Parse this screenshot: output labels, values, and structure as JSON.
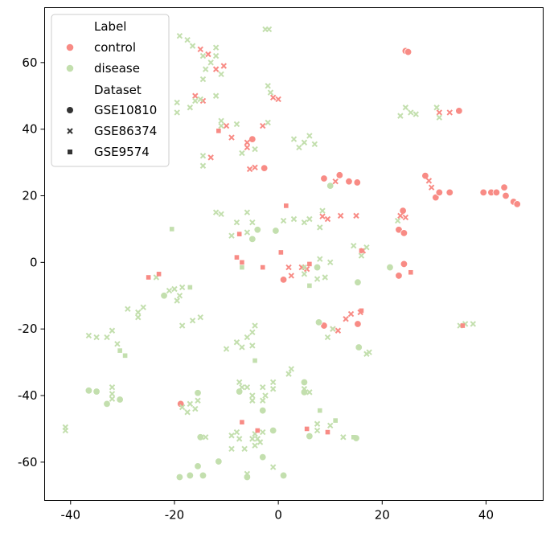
{
  "chart_data": {
    "type": "scatter",
    "title": "",
    "xlabel": "",
    "ylabel": "",
    "xlim": [
      -45,
      51
    ],
    "ylim": [
      -71.5,
      76.5
    ],
    "xticks": [
      -40,
      -20,
      0,
      20,
      40
    ],
    "yticks": [
      -60,
      -40,
      -20,
      0,
      20,
      40,
      60
    ],
    "grid": false,
    "legend_placement": "top-left",
    "legend": {
      "hue_title": "Label",
      "hue_entries": [
        {
          "name": "control",
          "color": "#f88b85"
        },
        {
          "name": "disease",
          "color": "#c3dfae"
        }
      ],
      "style_title": "Dataset",
      "style_entries": [
        {
          "name": "GSE10810",
          "marker": "circle"
        },
        {
          "name": "GSE86374",
          "marker": "x"
        },
        {
          "name": "GSE9574",
          "marker": "square"
        }
      ]
    },
    "series": [
      {
        "name": "control",
        "marker": "circle",
        "color": "#f88b85",
        "points": [
          [
            24.5,
            63.5
          ],
          [
            25,
            63.2
          ],
          [
            34.8,
            45.5
          ],
          [
            33,
            21
          ],
          [
            -5,
            37
          ],
          [
            -2.7,
            28.3
          ],
          [
            8.8,
            25.2
          ],
          [
            11.8,
            26.2
          ],
          [
            13.6,
            24.3
          ],
          [
            15.2,
            24
          ],
          [
            28.3,
            26
          ],
          [
            30.3,
            19.5
          ],
          [
            31,
            21
          ],
          [
            39.5,
            21
          ],
          [
            41,
            21
          ],
          [
            42,
            21
          ],
          [
            43.5,
            22.5
          ],
          [
            43.8,
            20
          ],
          [
            45.3,
            18.2
          ],
          [
            46,
            17.5
          ],
          [
            24,
            15.5
          ],
          [
            23.2,
            9.8
          ],
          [
            24.2,
            8.8
          ],
          [
            23.2,
            -4
          ],
          [
            24.2,
            -0.5
          ],
          [
            1,
            -5.2
          ],
          [
            8.8,
            -19
          ],
          [
            15.3,
            -18.5
          ],
          [
            -18.8,
            -42.5
          ]
        ]
      },
      {
        "name": "disease",
        "marker": "circle",
        "color": "#c3dfae",
        "points": [
          [
            -4,
            9.8
          ],
          [
            -5,
            7
          ],
          [
            -0.5,
            9.5
          ],
          [
            10,
            23
          ],
          [
            7.5,
            -1.5
          ],
          [
            21.5,
            -1.5
          ],
          [
            15.3,
            -6
          ],
          [
            -22,
            -10
          ],
          [
            7.8,
            -18
          ],
          [
            15.5,
            -25.5
          ],
          [
            -36.5,
            -38.5
          ],
          [
            -35,
            -38.8
          ],
          [
            -33,
            -42.5
          ],
          [
            -30.5,
            -41.2
          ],
          [
            -15.5,
            -39.2
          ],
          [
            -3,
            -44.5
          ],
          [
            5,
            -36
          ],
          [
            5,
            -39
          ],
          [
            -7.5,
            -38.8
          ],
          [
            -15,
            -52.5
          ],
          [
            -1,
            -50.5
          ],
          [
            6,
            -52.2
          ],
          [
            15,
            -52.8
          ],
          [
            -11.5,
            -59.8
          ],
          [
            -15.5,
            -61.2
          ],
          [
            -14.5,
            -64
          ],
          [
            -17,
            -64
          ],
          [
            -19,
            -64.5
          ],
          [
            -6,
            -64.5
          ],
          [
            -3,
            -58.5
          ],
          [
            1,
            -64
          ]
        ]
      },
      {
        "name": "control",
        "marker": "x",
        "color": "#f88b85",
        "points": [
          [
            -15,
            64
          ],
          [
            -13.5,
            62.5
          ],
          [
            -12,
            58
          ],
          [
            -10.5,
            59
          ],
          [
            -16,
            50
          ],
          [
            -14.5,
            48.5
          ],
          [
            -1,
            49.5
          ],
          [
            0,
            49
          ],
          [
            -3,
            41
          ],
          [
            -10,
            41
          ],
          [
            -9,
            37.5
          ],
          [
            -6,
            36
          ],
          [
            -6,
            34.5
          ],
          [
            -13,
            31.5
          ],
          [
            -5.5,
            28
          ],
          [
            -4.5,
            28.5
          ],
          [
            31,
            45
          ],
          [
            33,
            45
          ],
          [
            29,
            24.5
          ],
          [
            29.5,
            22.5
          ],
          [
            23.5,
            14
          ],
          [
            24.5,
            13.5
          ],
          [
            11,
            24.3
          ],
          [
            8.5,
            13.8
          ],
          [
            9.5,
            13
          ],
          [
            12,
            14
          ],
          [
            15,
            14
          ],
          [
            16.3,
            3.5
          ],
          [
            2,
            -1.5
          ],
          [
            5.5,
            -2
          ],
          [
            4.5,
            -1.5
          ],
          [
            2.5,
            -4
          ],
          [
            15.8,
            -15
          ],
          [
            14,
            -15.5
          ],
          [
            13,
            -17
          ],
          [
            11.5,
            -20.5
          ],
          [
            10.5,
            -20
          ]
        ]
      },
      {
        "name": "disease",
        "marker": "x",
        "color": "#c3dfae",
        "points": [
          [
            -19,
            68
          ],
          [
            -17.5,
            66.8
          ],
          [
            -16.5,
            65
          ],
          [
            -12,
            64.5
          ],
          [
            -12,
            62
          ],
          [
            -14.5,
            62
          ],
          [
            -13,
            60
          ],
          [
            -14,
            58
          ],
          [
            -14.5,
            55
          ],
          [
            -11,
            56.5
          ],
          [
            -12,
            50
          ],
          [
            -15,
            49
          ],
          [
            -16,
            48.5
          ],
          [
            -19.5,
            48
          ],
          [
            -19.5,
            45
          ],
          [
            -17,
            46.5
          ],
          [
            -2,
            53
          ],
          [
            -1.5,
            51
          ],
          [
            -2.5,
            70
          ],
          [
            -1.8,
            70
          ],
          [
            -11,
            42.5
          ],
          [
            -11,
            41
          ],
          [
            -8,
            41.5
          ],
          [
            -2,
            42
          ],
          [
            -7,
            32.8
          ],
          [
            -4.5,
            34
          ],
          [
            -14.5,
            32
          ],
          [
            -14.5,
            29
          ],
          [
            3,
            37
          ],
          [
            5,
            36
          ],
          [
            6,
            38
          ],
          [
            4,
            34.5
          ],
          [
            7,
            35.5
          ],
          [
            23.5,
            44
          ],
          [
            24.5,
            46.5
          ],
          [
            25.5,
            45
          ],
          [
            26.5,
            44.5
          ],
          [
            30.5,
            46.5
          ],
          [
            31,
            43.5
          ],
          [
            23,
            12.5
          ],
          [
            -12,
            15
          ],
          [
            -11,
            14.5
          ],
          [
            -6,
            15
          ],
          [
            -6,
            9
          ],
          [
            -5,
            12
          ],
          [
            -8,
            12
          ],
          [
            -9,
            8
          ],
          [
            1,
            12.5
          ],
          [
            3,
            13
          ],
          [
            5,
            12
          ],
          [
            6,
            13
          ],
          [
            8.5,
            15.5
          ],
          [
            8,
            10.5
          ],
          [
            14.5,
            5
          ],
          [
            17,
            4.5
          ],
          [
            16,
            2
          ],
          [
            10,
            0
          ],
          [
            9,
            -4.5
          ],
          [
            5,
            -1.5
          ],
          [
            5,
            -3.5
          ],
          [
            7.5,
            -5
          ],
          [
            8,
            1
          ],
          [
            -23.5,
            -4.5
          ],
          [
            -21,
            -8.5
          ],
          [
            -19,
            -10
          ],
          [
            -18.5,
            -7.5
          ],
          [
            -19.5,
            -11.5
          ],
          [
            -29,
            -14
          ],
          [
            -27,
            -15
          ],
          [
            -26,
            -13.5
          ],
          [
            -27,
            -16.5
          ],
          [
            -20,
            -8
          ],
          [
            -18.5,
            -19
          ],
          [
            -16.5,
            -17.5
          ],
          [
            -15,
            -16.5
          ],
          [
            -36.5,
            -22
          ],
          [
            -35,
            -22.5
          ],
          [
            -33,
            -22.5
          ],
          [
            -32,
            -20.5
          ],
          [
            -31,
            -24.5
          ],
          [
            -8,
            -24
          ],
          [
            -7,
            -25.5
          ],
          [
            -10,
            -26
          ],
          [
            -5,
            -25
          ],
          [
            -5,
            -21
          ],
          [
            -4.5,
            -19
          ],
          [
            -6,
            -22.5
          ],
          [
            9.5,
            -22.5
          ],
          [
            10.5,
            -20
          ],
          [
            17,
            -27.5
          ],
          [
            17.5,
            -27
          ],
          [
            35,
            -19
          ],
          [
            36,
            -18.5
          ],
          [
            37.5,
            -18.5
          ],
          [
            -32,
            -37.5
          ],
          [
            -32,
            -39.5
          ],
          [
            -32,
            -41
          ],
          [
            -7.5,
            -36
          ],
          [
            -7,
            -37.5
          ],
          [
            -6,
            -37.5
          ],
          [
            -3,
            -37.5
          ],
          [
            -2.5,
            -40
          ],
          [
            -3,
            -41.5
          ],
          [
            -5,
            -40
          ],
          [
            -5,
            -41.5
          ],
          [
            -1,
            -36
          ],
          [
            -1,
            -38
          ],
          [
            2,
            -33.5
          ],
          [
            2.5,
            -32
          ],
          [
            5,
            -38
          ],
          [
            6,
            -39
          ],
          [
            -18.5,
            -43.5
          ],
          [
            -17.5,
            -45
          ],
          [
            -17,
            -42.5
          ],
          [
            -15.5,
            -41.5
          ],
          [
            -16,
            -44
          ],
          [
            7.5,
            -48.5
          ],
          [
            7.5,
            -50.5
          ],
          [
            10,
            -49
          ],
          [
            12.5,
            -52.5
          ],
          [
            -14,
            -52.5
          ],
          [
            -9,
            -52
          ],
          [
            -8,
            -51
          ],
          [
            -7.5,
            -53
          ],
          [
            -5,
            -53
          ],
          [
            -4.5,
            -51.5
          ],
          [
            -4,
            -53
          ],
          [
            -3.5,
            -54
          ],
          [
            -3,
            -51
          ],
          [
            -4.5,
            -55
          ],
          [
            -6.5,
            -56
          ],
          [
            -9,
            -56
          ],
          [
            -6,
            -63.5
          ],
          [
            -1,
            -61.5
          ],
          [
            -41,
            -49.5
          ],
          [
            -41,
            -50.5
          ]
        ]
      },
      {
        "name": "control",
        "marker": "square",
        "color": "#f88b85",
        "points": [
          [
            -11.5,
            39.5
          ],
          [
            1.5,
            17
          ],
          [
            -7.5,
            8.5
          ],
          [
            -8,
            1.5
          ],
          [
            -7,
            0
          ],
          [
            -3,
            -1.5
          ],
          [
            0.5,
            3
          ],
          [
            6,
            -0.5
          ],
          [
            16,
            3.5
          ],
          [
            25.5,
            -3
          ],
          [
            -25,
            -4.5
          ],
          [
            -23,
            -3.5
          ],
          [
            16,
            -14.5
          ],
          [
            35.5,
            -19
          ],
          [
            -7,
            -48
          ],
          [
            5.5,
            -50
          ],
          [
            -4,
            -50.5
          ],
          [
            9.5,
            -51
          ]
        ]
      },
      {
        "name": "disease",
        "marker": "square",
        "color": "#c3dfae",
        "points": [
          [
            -20.5,
            10
          ],
          [
            -7,
            -1.5
          ],
          [
            6,
            -7
          ],
          [
            -17,
            -7.5
          ],
          [
            -30.5,
            -26.5
          ],
          [
            -29.5,
            -28
          ],
          [
            -4.5,
            -29.5
          ],
          [
            8,
            -44.5
          ],
          [
            11,
            -47.5
          ],
          [
            14.5,
            -52.5
          ]
        ]
      }
    ]
  }
}
